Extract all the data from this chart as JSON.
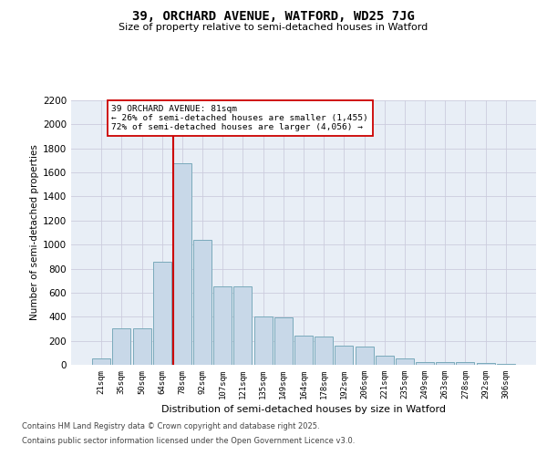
{
  "title": "39, ORCHARD AVENUE, WATFORD, WD25 7JG",
  "subtitle": "Size of property relative to semi-detached houses in Watford",
  "xlabel": "Distribution of semi-detached houses by size in Watford",
  "ylabel": "Number of semi-detached properties",
  "categories": [
    "21sqm",
    "35sqm",
    "50sqm",
    "64sqm",
    "78sqm",
    "92sqm",
    "107sqm",
    "121sqm",
    "135sqm",
    "149sqm",
    "164sqm",
    "178sqm",
    "192sqm",
    "206sqm",
    "221sqm",
    "235sqm",
    "249sqm",
    "263sqm",
    "278sqm",
    "292sqm",
    "306sqm"
  ],
  "values": [
    50,
    300,
    300,
    860,
    1680,
    1040,
    650,
    650,
    400,
    395,
    240,
    235,
    160,
    155,
    75,
    50,
    25,
    20,
    20,
    15,
    5
  ],
  "bar_color": "#c8d8e8",
  "bar_edge_color": "#7aaabb",
  "property_label": "39 ORCHARD AVENUE: 81sqm",
  "pct_smaller": 26,
  "pct_larger": 72,
  "count_smaller": 1455,
  "count_larger": 4056,
  "vline_x_index": 4,
  "vline_color": "#cc0000",
  "grid_color": "#ccccdd",
  "background_color": "#e8eef6",
  "footer_line1": "Contains HM Land Registry data © Crown copyright and database right 2025.",
  "footer_line2": "Contains public sector information licensed under the Open Government Licence v3.0.",
  "ylim_max": 2200,
  "ytick_step": 200
}
